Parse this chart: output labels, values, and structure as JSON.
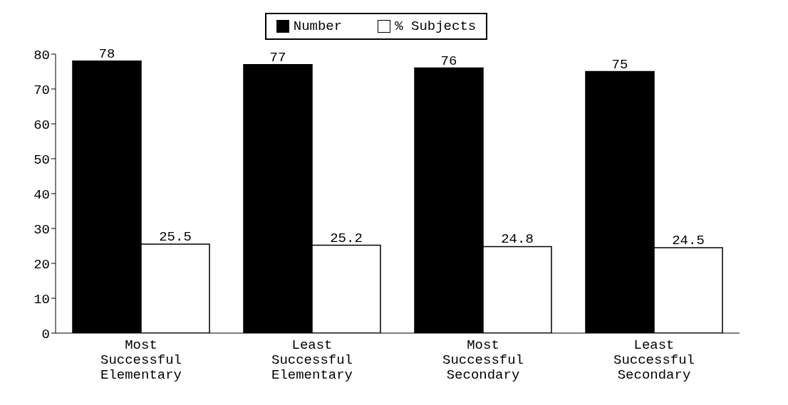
{
  "chart_data": {
    "type": "bar",
    "categories": [
      "Most Successful Elementary",
      "Least Successful Elementary",
      "Most Successful Secondary",
      "Least Successful Secondary"
    ],
    "series": [
      {
        "name": "Number",
        "color": "#000000",
        "values": [
          78,
          77,
          76,
          75
        ]
      },
      {
        "name": "% Subjects",
        "color": "#ffffff",
        "values": [
          25.5,
          25.2,
          24.8,
          24.5
        ]
      }
    ],
    "ylim": [
      0,
      80
    ],
    "yticks": [
      0,
      10,
      20,
      30,
      40,
      50,
      60,
      70,
      80
    ],
    "data_labels": true,
    "legend": "top",
    "grid": false
  }
}
